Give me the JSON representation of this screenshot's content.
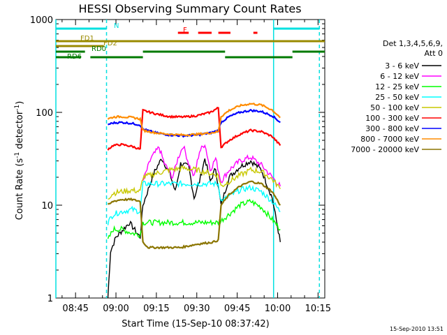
{
  "chart_data": {
    "type": "line",
    "title": "HESSI Observing Summary Count Rates",
    "xlabel": "Start Time (15-Sep-10 08:37:42)",
    "ylabel": "Count Rate (s^-1 detector^-1)",
    "y_scale": "log",
    "ylim": [
      1,
      1000
    ],
    "xlim": [
      "08:37:42",
      "10:17:30"
    ],
    "x_tick_labels": [
      "08:45",
      "09:00",
      "09:15",
      "09:30",
      "09:45",
      "10:00",
      "10:15"
    ],
    "y_tick_labels": [
      "1",
      "10",
      "100",
      "1000"
    ],
    "y_tick_values": [
      1,
      10,
      100,
      1000
    ],
    "legend_position": "right",
    "legend_header": [
      "Det 1,3,4,5,6,9,",
      "Att 0"
    ],
    "footer_timestamp": "15-Sep-2010 13:51",
    "series": [
      {
        "name": "3 - 6 keV",
        "color": "#000000",
        "x": [
          "08:57",
          "08:58",
          "09:00",
          "09:05",
          "09:09",
          "09:10",
          "09:14",
          "09:17",
          "09:20",
          "09:22",
          "09:24",
          "09:27",
          "09:29",
          "09:31",
          "09:33",
          "09:35",
          "09:37",
          "09:39",
          "09:42",
          "09:46",
          "09:50",
          "09:54",
          "09:58",
          "10:01"
        ],
        "values": [
          1.0,
          3.2,
          4.5,
          6.5,
          4.5,
          10,
          22,
          32,
          22,
          14,
          28,
          26,
          12,
          18,
          32,
          18,
          25,
          10,
          20,
          26,
          30,
          24,
          12,
          4
        ]
      },
      {
        "name": "6 - 12 keV",
        "color": "#ff00ff",
        "x": [
          "09:10",
          "09:13",
          "09:16",
          "09:18",
          "09:21",
          "09:23",
          "09:25",
          "09:27",
          "09:29",
          "09:31",
          "09:33",
          "09:35",
          "09:37",
          "09:39",
          "09:42",
          "09:46",
          "09:50",
          "09:54",
          "09:58",
          "10:01"
        ],
        "values": [
          18,
          32,
          42,
          28,
          20,
          32,
          44,
          28,
          20,
          38,
          46,
          24,
          32,
          18,
          24,
          30,
          33,
          27,
          20,
          16
        ]
      },
      {
        "name": "12 - 25 keV",
        "color": "#00ff00",
        "x": [
          "08:57",
          "08:59",
          "09:02",
          "09:06",
          "09:09",
          "09:10",
          "09:20",
          "09:30",
          "09:38",
          "09:39",
          "09:42",
          "09:46",
          "09:50",
          "09:54",
          "09:58",
          "10:01"
        ],
        "values": [
          4.2,
          5.5,
          5.5,
          5.0,
          4.8,
          6.5,
          6.5,
          6.5,
          6.5,
          6.8,
          8.0,
          10.0,
          11.0,
          9.5,
          7.0,
          5.5
        ]
      },
      {
        "name": "25 - 50 keV",
        "color": "#00ffff",
        "x": [
          "08:57",
          "08:59",
          "09:02",
          "09:06",
          "09:09",
          "09:10",
          "09:20",
          "09:30",
          "09:38",
          "09:39",
          "09:42",
          "09:46",
          "09:50",
          "09:54",
          "09:58",
          "10:01"
        ],
        "values": [
          6.5,
          8.0,
          8.5,
          9.0,
          8.5,
          17,
          17,
          17,
          17,
          11,
          12.5,
          14.5,
          15.5,
          14,
          11,
          8.5
        ]
      },
      {
        "name": "50 - 100 keV",
        "color": "#c8c800",
        "x": [
          "08:57",
          "08:59",
          "09:02",
          "09:06",
          "09:09",
          "09:10",
          "09:15",
          "09:20",
          "09:25",
          "09:30",
          "09:35",
          "09:38",
          "09:39",
          "09:42",
          "09:46",
          "09:50",
          "09:54",
          "09:58",
          "10:01"
        ],
        "values": [
          12,
          13.5,
          14,
          14.5,
          14,
          20,
          22,
          24,
          25,
          24,
          22,
          21,
          16,
          18,
          21,
          24,
          23,
          19,
          15
        ]
      },
      {
        "name": "100 - 300 keV",
        "color": "#ff0000",
        "x": [
          "08:57",
          "08:59",
          "09:02",
          "09:06",
          "09:09",
          "09:10",
          "09:15",
          "09:20",
          "09:25",
          "09:30",
          "09:35",
          "09:38",
          "09:39",
          "09:42",
          "09:46",
          "09:50",
          "09:54",
          "09:58",
          "10:01"
        ],
        "values": [
          40,
          44,
          45,
          43,
          40,
          105,
          96,
          90,
          89,
          92,
          100,
          112,
          42,
          50,
          58,
          64,
          62,
          55,
          44
        ]
      },
      {
        "name": "300 - 800 keV",
        "color": "#0000ff",
        "x": [
          "08:57",
          "08:59",
          "09:02",
          "09:06",
          "09:09",
          "09:10",
          "09:15",
          "09:20",
          "09:25",
          "09:30",
          "09:35",
          "09:38",
          "09:39",
          "09:42",
          "09:46",
          "09:50",
          "09:54",
          "09:58",
          "10:01"
        ],
        "values": [
          74,
          77,
          78,
          76,
          73,
          66,
          60,
          57,
          56,
          57,
          60,
          64,
          78,
          90,
          100,
          105,
          102,
          92,
          78
        ]
      },
      {
        "name": "800 - 7000 keV",
        "color": "#ff8c00",
        "x": [
          "08:57",
          "08:59",
          "09:02",
          "09:06",
          "09:09",
          "09:10",
          "09:15",
          "09:20",
          "09:25",
          "09:30",
          "09:35",
          "09:38",
          "09:39",
          "09:42",
          "09:46",
          "09:50",
          "09:54",
          "09:58",
          "10:01"
        ],
        "values": [
          85,
          89,
          90,
          88,
          85,
          64,
          60,
          58,
          57,
          58,
          60,
          62,
          90,
          105,
          118,
          124,
          120,
          106,
          88
        ]
      },
      {
        "name": "7000 - 20000 keV",
        "color": "#8b7500",
        "x": [
          "08:57",
          "08:59",
          "09:02",
          "09:06",
          "09:09",
          "09:10",
          "09:12",
          "09:18",
          "09:24",
          "09:30",
          "09:36",
          "09:38",
          "09:39",
          "09:42",
          "09:46",
          "09:50",
          "09:54",
          "09:58",
          "10:01"
        ],
        "values": [
          10,
          11,
          11.5,
          11.5,
          11,
          4,
          3.5,
          3.5,
          3.5,
          3.8,
          4.0,
          4.2,
          10,
          13,
          16,
          18,
          17,
          14,
          10
        ]
      }
    ],
    "vertical_lines": [
      {
        "x": "08:37:42",
        "color": "#00e0e0",
        "style": "solid"
      },
      {
        "x": "08:56:30",
        "color": "#00e0e0",
        "style": "dashed"
      },
      {
        "x": "09:58:30",
        "color": "#00e0e0",
        "style": "solid"
      },
      {
        "x": "10:15:30",
        "color": "#00e0e0",
        "style": "dashed"
      }
    ],
    "status_bars": [
      {
        "label": "N",
        "color": "#00e0e0",
        "segments": [
          [
            "08:37:42",
            "08:56:30"
          ],
          [
            "09:58:30",
            "10:15:30"
          ]
        ]
      },
      {
        "label": "F",
        "color": "#ff0000",
        "segments": [
          [
            "09:23:00",
            "09:27:00"
          ],
          [
            "09:30:30",
            "09:35:30"
          ],
          [
            "09:38:00",
            "09:42:30"
          ],
          [
            "09:51:00",
            "09:52:30"
          ]
        ]
      },
      {
        "label": "FD1",
        "color": "#9a8a00",
        "segments": [
          [
            "08:37:42",
            "10:17:30"
          ]
        ]
      },
      {
        "label": "FD2",
        "color": "#9a8a00",
        "segments": [
          [
            "08:37:42",
            "08:55:30"
          ]
        ]
      },
      {
        "label": "RD0",
        "color": "#007a00",
        "segments": [
          [
            "08:37:42",
            "08:48:30"
          ],
          [
            "09:10:00",
            "09:40:30"
          ],
          [
            "10:05:30",
            "10:17:30"
          ]
        ]
      },
      {
        "label": "RD6",
        "color": "#007a00",
        "segments": [
          [
            "08:37:42",
            "08:47:00"
          ],
          [
            "08:50:30",
            "09:10:00"
          ],
          [
            "09:40:30",
            "10:05:30"
          ]
        ]
      }
    ]
  }
}
